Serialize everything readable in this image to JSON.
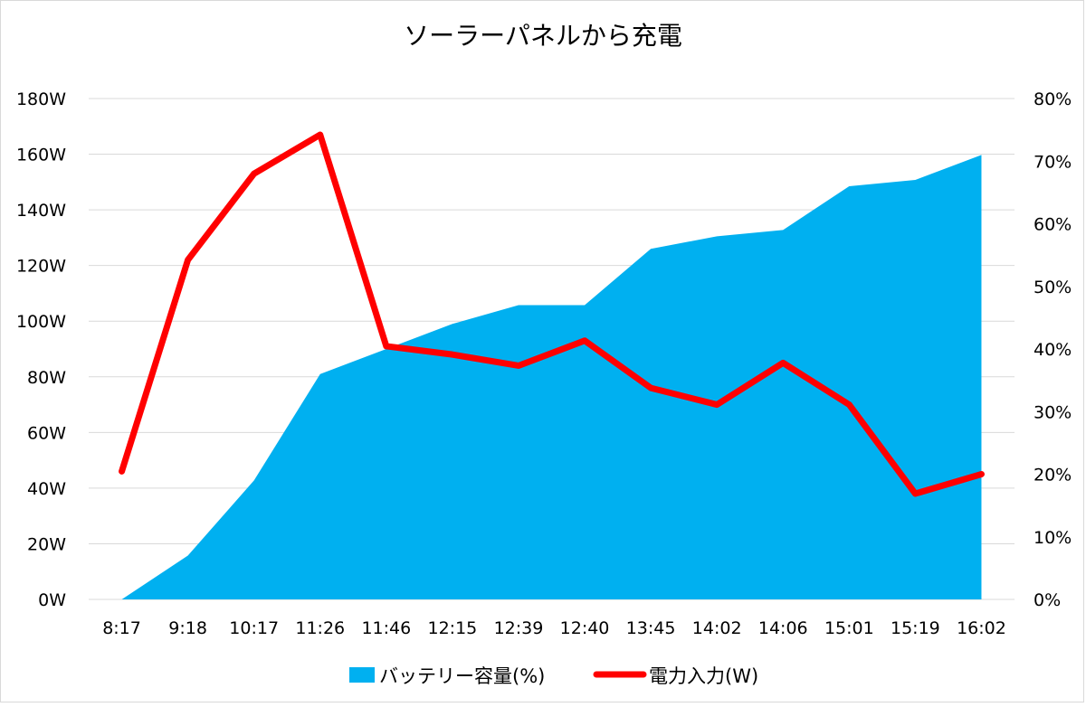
{
  "chart_data": {
    "type": "area+line",
    "title": "ソーラーパネルから充電",
    "categories": [
      "8:17",
      "9:18",
      "10:17",
      "11:26",
      "11:46",
      "12:15",
      "12:39",
      "12:40",
      "13:45",
      "14:02",
      "14:06",
      "15:01",
      "15:19",
      "16:02"
    ],
    "y_left": {
      "ticks": [
        "0W",
        "20W",
        "40W",
        "60W",
        "80W",
        "100W",
        "120W",
        "140W",
        "160W",
        "180W"
      ],
      "range": [
        0,
        180
      ]
    },
    "y_right": {
      "ticks": [
        "0%",
        "10%",
        "20%",
        "30%",
        "40%",
        "50%",
        "60%",
        "70%",
        "80%"
      ],
      "range": [
        0,
        80
      ]
    },
    "grid": true,
    "legend_position": "bottom",
    "series": [
      {
        "name": "バッテリー容量(%)",
        "type": "area",
        "axis": "right",
        "color": "#00B0F0",
        "values": [
          0,
          7,
          19,
          36,
          40,
          44,
          47,
          47,
          56,
          58,
          59,
          66,
          67,
          71
        ]
      },
      {
        "name": "電力入力(W)",
        "type": "line",
        "axis": "left",
        "color": "#FF0000",
        "values": [
          46,
          122,
          153,
          167,
          91,
          88,
          84,
          93,
          76,
          70,
          85,
          70,
          38,
          45
        ]
      }
    ]
  }
}
